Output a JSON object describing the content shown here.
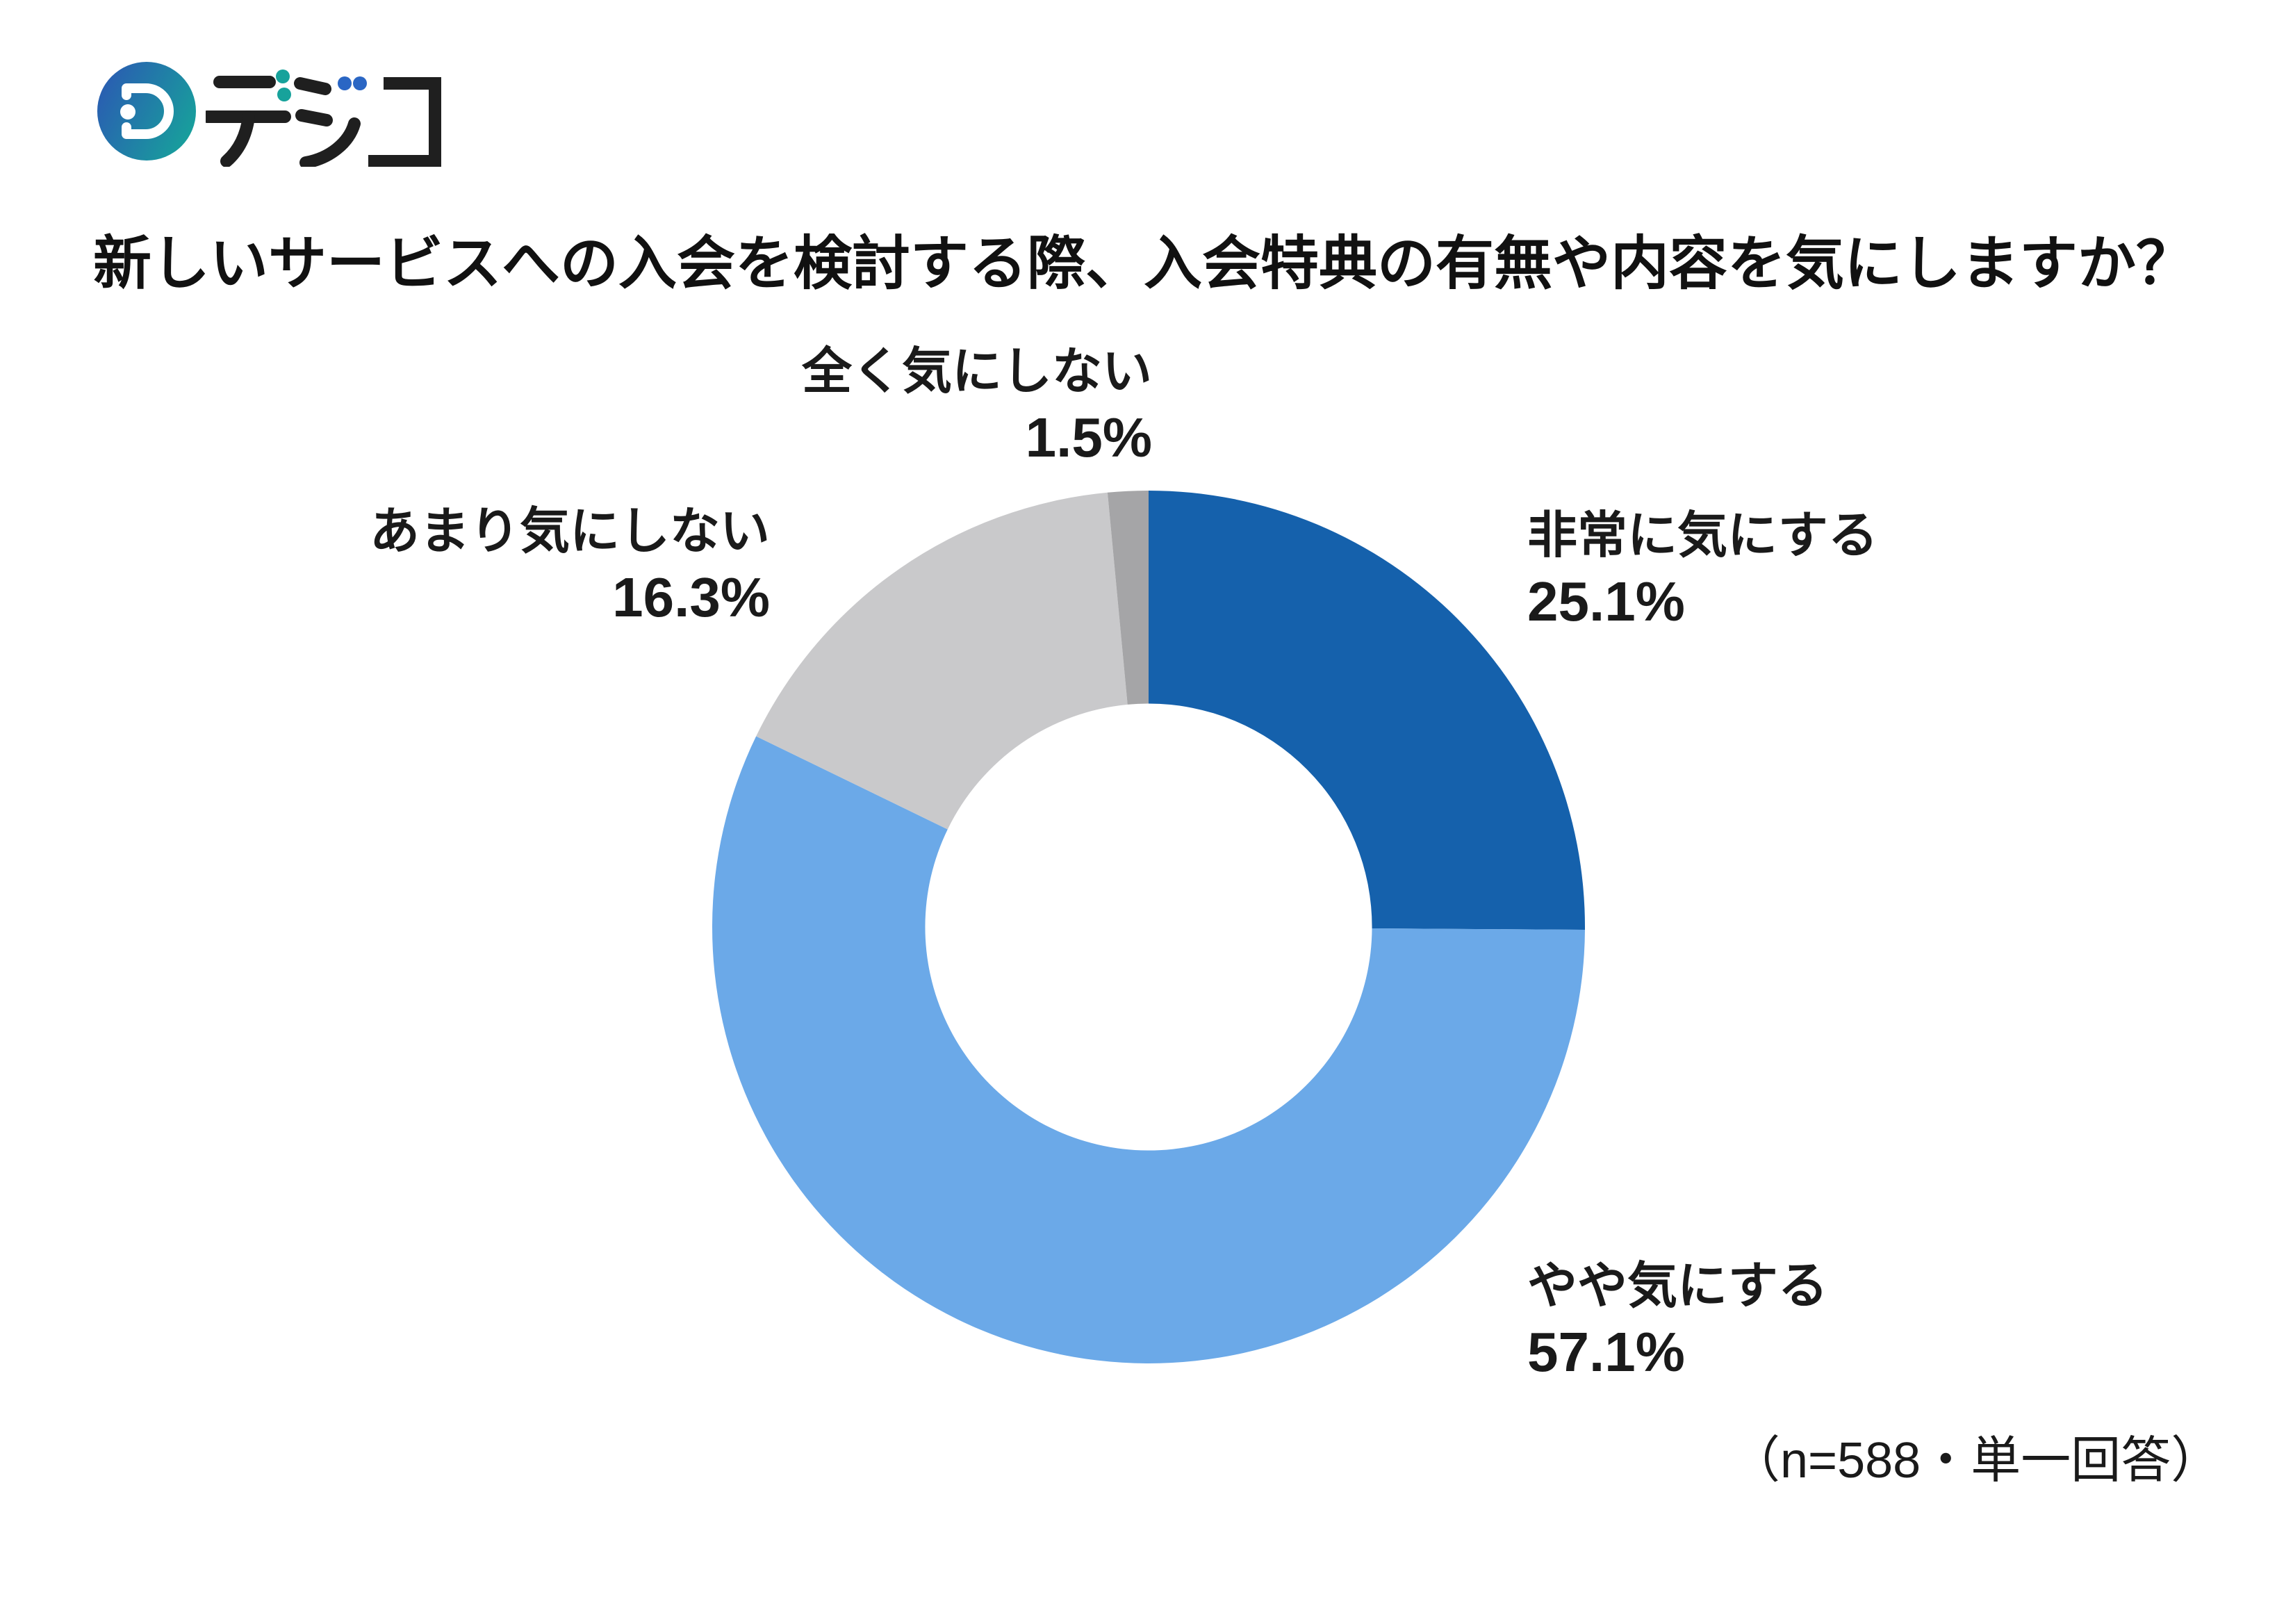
{
  "page": {
    "background": "#ffffff"
  },
  "logo": {
    "text": "デジコ",
    "mark_gradient_start": "#2A5CB2",
    "mark_gradient_end": "#17A29B",
    "de_dots_color": "#17A29B",
    "ji_dots_color": "#2A66C4",
    "stroke_color": "#1f1f1f"
  },
  "title": "新しいサービスへの入会を検討する際、入会特典の有無や内容を気にしますか？",
  "note": "（n=588・単一回答）",
  "chart_data": {
    "type": "pie",
    "subtype": "donut",
    "title": "新しいサービスへの入会を検討する際、入会特典の有無や内容を気にしますか？",
    "categories": [
      "非常に気にする",
      "やや気にする",
      "あまり気にしない",
      "全く気にしない"
    ],
    "values": [
      25.1,
      57.1,
      16.3,
      1.5
    ],
    "unit": "%",
    "colors": [
      "#1561AC",
      "#6BA9E8",
      "#C9C9CB",
      "#A5A5A7"
    ],
    "start_angle_deg": 0,
    "direction": "clockwise",
    "hole_ratio": 0.512,
    "n": 588,
    "sample_note": "（n=588・単一回答）",
    "segments": [
      {
        "label": "非常に気にする",
        "pct_text": "25.1%",
        "color": "#1561AC",
        "label_side": "right"
      },
      {
        "label": "やや気にする",
        "pct_text": "57.1%",
        "color": "#6BA9E8",
        "label_side": "right"
      },
      {
        "label": "あまり気にしない",
        "pct_text": "16.3%",
        "color": "#C9C9CB",
        "label_side": "left"
      },
      {
        "label": "全く気にしない",
        "pct_text": "1.5%",
        "color": "#A5A5A7",
        "label_side": "left"
      }
    ]
  }
}
